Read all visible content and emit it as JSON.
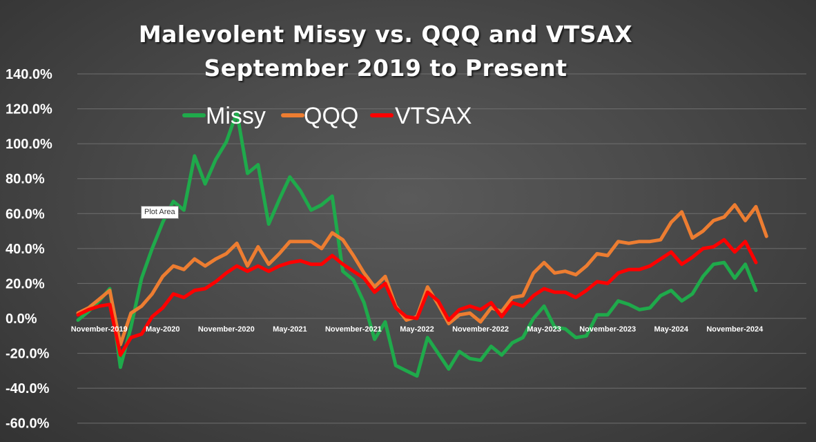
{
  "chart_data": {
    "type": "line",
    "title": "Malevolent Missy vs. QQQ and VTSAX",
    "subtitle": "September 2019 to Present",
    "ylim": [
      -60,
      140
    ],
    "y_ticks": [
      "140.0%",
      "120.0%",
      "100.0%",
      "80.0%",
      "60.0%",
      "40.0%",
      "20.0%",
      "0.0%",
      "-20.0%",
      "-40.0%",
      "-60.0%"
    ],
    "y_tick_values": [
      140,
      120,
      100,
      80,
      60,
      40,
      20,
      0,
      -20,
      -40,
      -60
    ],
    "x_ticks": [
      "November-2019",
      "May-2020",
      "November-2020",
      "May-2021",
      "November-2021",
      "May-2022",
      "November-2022",
      "May-2023",
      "November-2023",
      "May-2024",
      "November-2024"
    ],
    "x_tick_index": [
      2,
      8,
      14,
      20,
      26,
      32,
      38,
      44,
      50,
      56,
      62
    ],
    "x_count": 68,
    "grid": true,
    "legend_position": "top",
    "series": [
      {
        "name": "Missy",
        "color": "#1faa4b",
        "values": [
          -1,
          4,
          10,
          17,
          -28,
          -5,
          23,
          40,
          55,
          67,
          62,
          93,
          77,
          91,
          101,
          118,
          83,
          88,
          54,
          68,
          81,
          73,
          62,
          65,
          70,
          27,
          22,
          9,
          -12,
          -2,
          -27,
          -30,
          -33,
          -11,
          -20,
          -29,
          -19,
          -23,
          -24,
          -16,
          -21,
          -14,
          -11,
          0,
          7,
          -5,
          -6,
          -11,
          -10,
          2,
          2,
          10,
          8,
          5,
          6,
          13,
          16,
          10,
          14,
          24,
          31,
          32,
          23,
          31,
          16
        ]
      },
      {
        "name": "QQQ",
        "color": "#ed7d31",
        "values": [
          3,
          6,
          11,
          16,
          -15,
          3,
          7,
          14,
          24,
          30,
          28,
          34,
          30,
          34,
          37,
          43,
          30,
          41,
          31,
          37,
          44,
          44,
          44,
          40,
          49,
          45,
          36,
          26,
          18,
          24,
          7,
          -1,
          1,
          18,
          8,
          -3,
          2,
          3,
          -2,
          6,
          4,
          12,
          13,
          26,
          32,
          26,
          27,
          25,
          30,
          37,
          36,
          44,
          43,
          44,
          44,
          45,
          55,
          61,
          46,
          50,
          56,
          58,
          65,
          56,
          64,
          47
        ]
      },
      {
        "name": "VTSAX",
        "color": "#ff0000",
        "values": [
          2,
          5,
          7,
          8,
          -21,
          -11,
          -9,
          1,
          6,
          14,
          12,
          16,
          17,
          21,
          26,
          30,
          27,
          30,
          27,
          30,
          32,
          33,
          31,
          31,
          36,
          31,
          27,
          23,
          15,
          20,
          6,
          1,
          0,
          15,
          10,
          -1,
          5,
          7,
          5,
          9,
          1,
          9,
          7,
          13,
          17,
          15,
          15,
          12,
          16,
          21,
          20,
          26,
          28,
          28,
          30,
          34,
          38,
          31,
          35,
          40,
          41,
          45,
          38,
          44,
          32
        ]
      }
    ]
  },
  "tooltip": {
    "label": "Plot Area"
  }
}
